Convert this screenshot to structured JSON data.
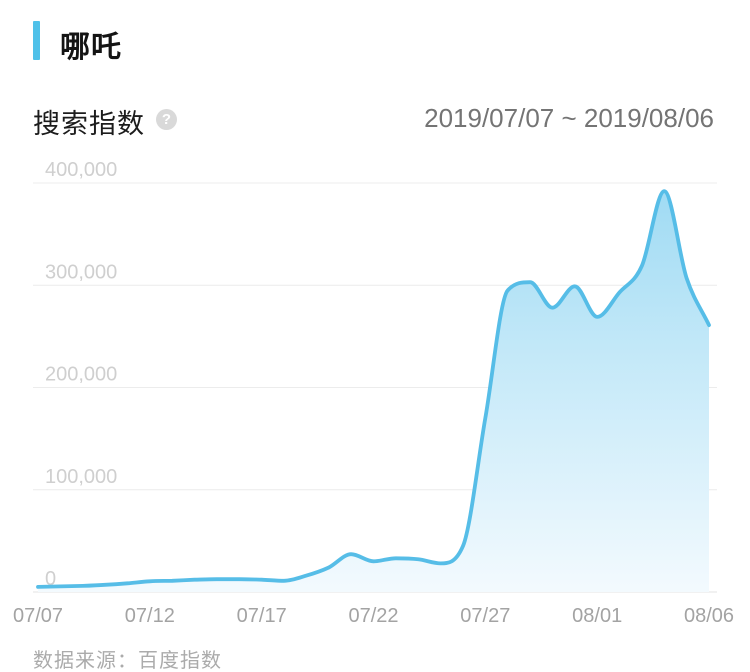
{
  "header": {
    "title": "哪吒"
  },
  "subheader": {
    "metric_label": "搜索指数",
    "help_icon": "?",
    "date_range": "2019/07/07 ~ 2019/08/06"
  },
  "footer": {
    "source": "数据来源：百度指数"
  },
  "colors": {
    "accent": "#4FC1E9",
    "line": "#56BDE7",
    "fill_top": "#9EDAF3",
    "fill_bottom": "#F3FAFE",
    "grid": "#ececec",
    "y_label": "#cfcfcf",
    "x_label": "#a3a3a3"
  },
  "chart_data": {
    "type": "area",
    "title": "搜索指数",
    "subtitle": "2019/07/07 ~ 2019/08/06",
    "source": "百度指数",
    "x": [
      "07/07",
      "07/08",
      "07/09",
      "07/10",
      "07/11",
      "07/12",
      "07/13",
      "07/14",
      "07/15",
      "07/16",
      "07/17",
      "07/18",
      "07/19",
      "07/20",
      "07/21",
      "07/22",
      "07/23",
      "07/24",
      "07/25",
      "07/26",
      "07/27",
      "07/28",
      "07/29",
      "07/30",
      "07/31",
      "08/01",
      "08/02",
      "08/03",
      "08/04",
      "08/05",
      "08/06"
    ],
    "values": [
      5000,
      5500,
      6000,
      7000,
      8500,
      10500,
      11000,
      12000,
      12500,
      12500,
      12000,
      11000,
      16000,
      24000,
      37000,
      30000,
      33000,
      32000,
      28000,
      45000,
      170000,
      295000,
      303000,
      278000,
      299000,
      269000,
      293000,
      319000,
      392000,
      307000,
      261000
    ],
    "x_tick_labels": [
      "07/07",
      "07/12",
      "07/17",
      "07/22",
      "07/27",
      "08/01",
      "08/06"
    ],
    "x_tick_every": 5,
    "y_ticks": [
      {
        "value": 0,
        "label": "0"
      },
      {
        "value": 100000,
        "label": "100,000"
      },
      {
        "value": 200000,
        "label": "200,000"
      },
      {
        "value": 300000,
        "label": "300,000"
      },
      {
        "value": 400000,
        "label": "400,000"
      }
    ],
    "xlabel": "",
    "ylabel": "",
    "ylim": [
      0,
      400000
    ],
    "grid": true,
    "legend": false,
    "smooth": true
  }
}
